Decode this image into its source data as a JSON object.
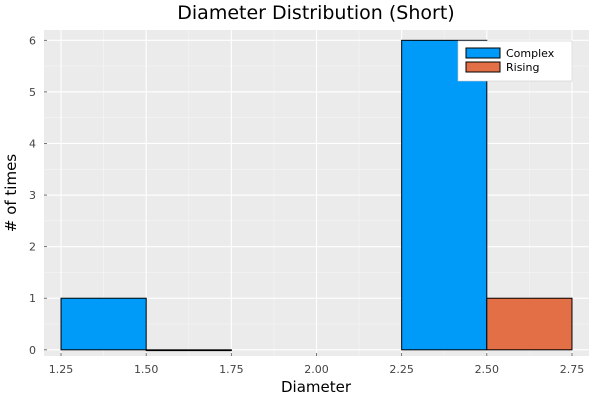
{
  "chart_data": {
    "type": "bar",
    "title": "Diameter Distribution (Short)",
    "xlabel": "Diameter",
    "ylabel": "# of times",
    "xlim": [
      1.2,
      2.8
    ],
    "ylim": [
      -0.15,
      6.2
    ],
    "xticks": [
      1.25,
      1.5,
      1.75,
      2.0,
      2.25,
      2.5,
      2.75
    ],
    "xtick_labels": [
      "1.25",
      "1.50",
      "1.75",
      "2.00",
      "2.25",
      "2.50",
      "2.75"
    ],
    "yticks": [
      0,
      1,
      2,
      3,
      4,
      5,
      6
    ],
    "ytick_labels": [
      "0",
      "1",
      "2",
      "3",
      "4",
      "5",
      "6"
    ],
    "grid": true,
    "legend_position": "top-right",
    "background": "#ebebeb",
    "series": [
      {
        "name": "Complex",
        "color": "#009af9",
        "bins": [
          [
            1.25,
            1.5,
            1
          ],
          [
            2.25,
            2.5,
            6
          ]
        ]
      },
      {
        "name": "Rising",
        "color": "#e26f46",
        "bins": [
          [
            1.5,
            1.75,
            0
          ],
          [
            2.5,
            2.75,
            1
          ]
        ]
      }
    ]
  }
}
